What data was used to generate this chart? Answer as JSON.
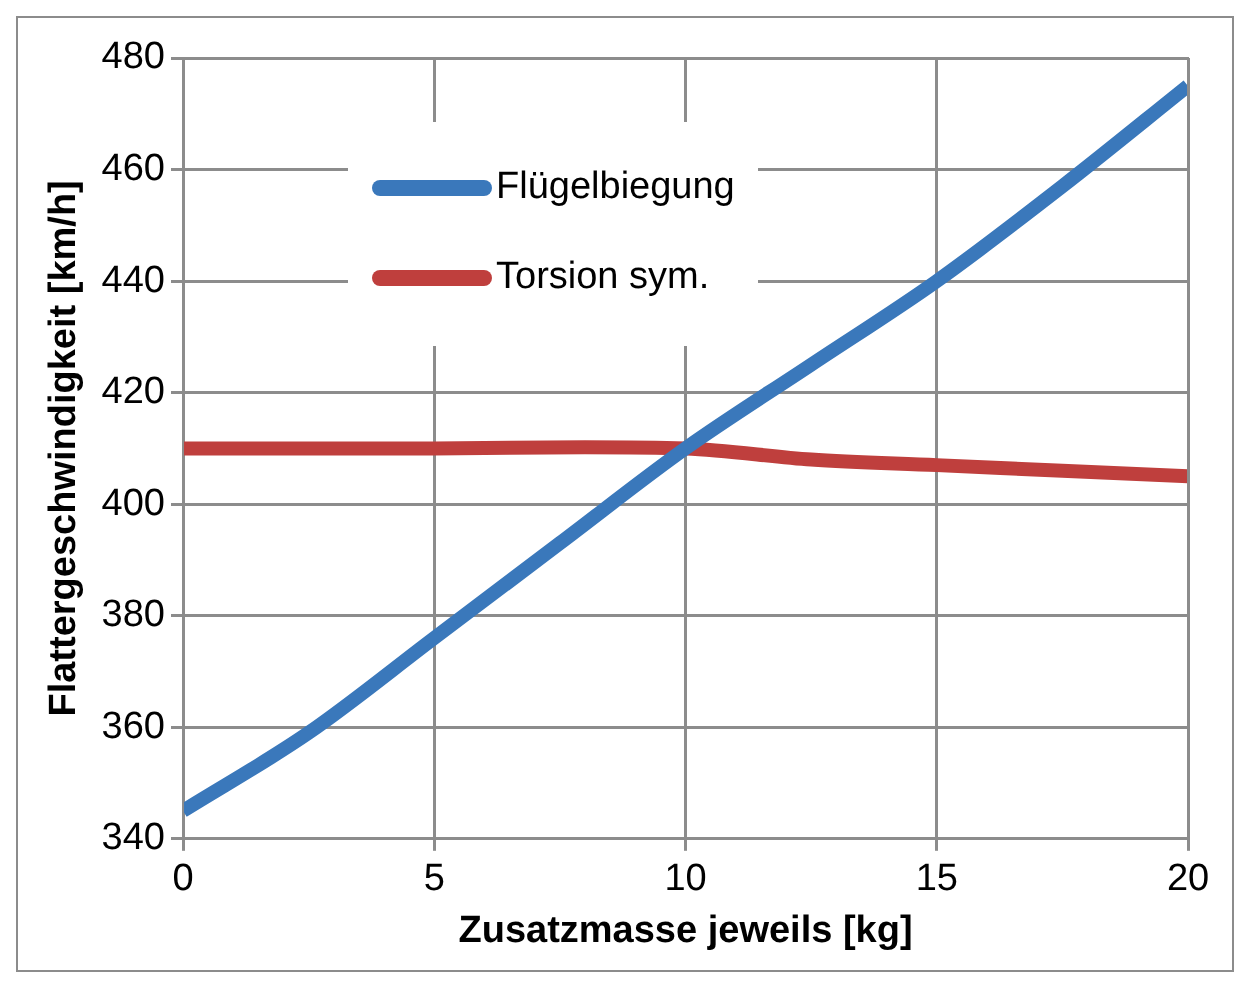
{
  "chart_data": {
    "type": "line",
    "xlabel": "Zusatzmasse jeweils [kg]",
    "ylabel": "Flattergeschwindigkeit [km/h]",
    "xlim": [
      0,
      20
    ],
    "xticks": [
      0,
      5,
      10,
      15,
      20
    ],
    "ylim": [
      340,
      480
    ],
    "yticks": [
      340,
      360,
      380,
      400,
      420,
      440,
      460,
      480
    ],
    "grid": true,
    "legend": "top left",
    "marker": "none",
    "line_style": "solid",
    "series": [
      {
        "name": "Flügelbiegung",
        "color": "#3a78bb",
        "x": [
          0,
          2.5,
          5,
          7.5,
          10,
          12.5,
          15,
          17.5,
          20
        ],
        "values": [
          345,
          359,
          376,
          393,
          410,
          425,
          440,
          457,
          475
        ]
      },
      {
        "name": "Torsion sym.",
        "color": "#bf3f3d",
        "x": [
          0,
          5,
          8,
          10,
          12.5,
          15,
          17.5,
          20
        ],
        "values": [
          410,
          410,
          410.2,
          410,
          408,
          407,
          406,
          405
        ]
      }
    ]
  }
}
